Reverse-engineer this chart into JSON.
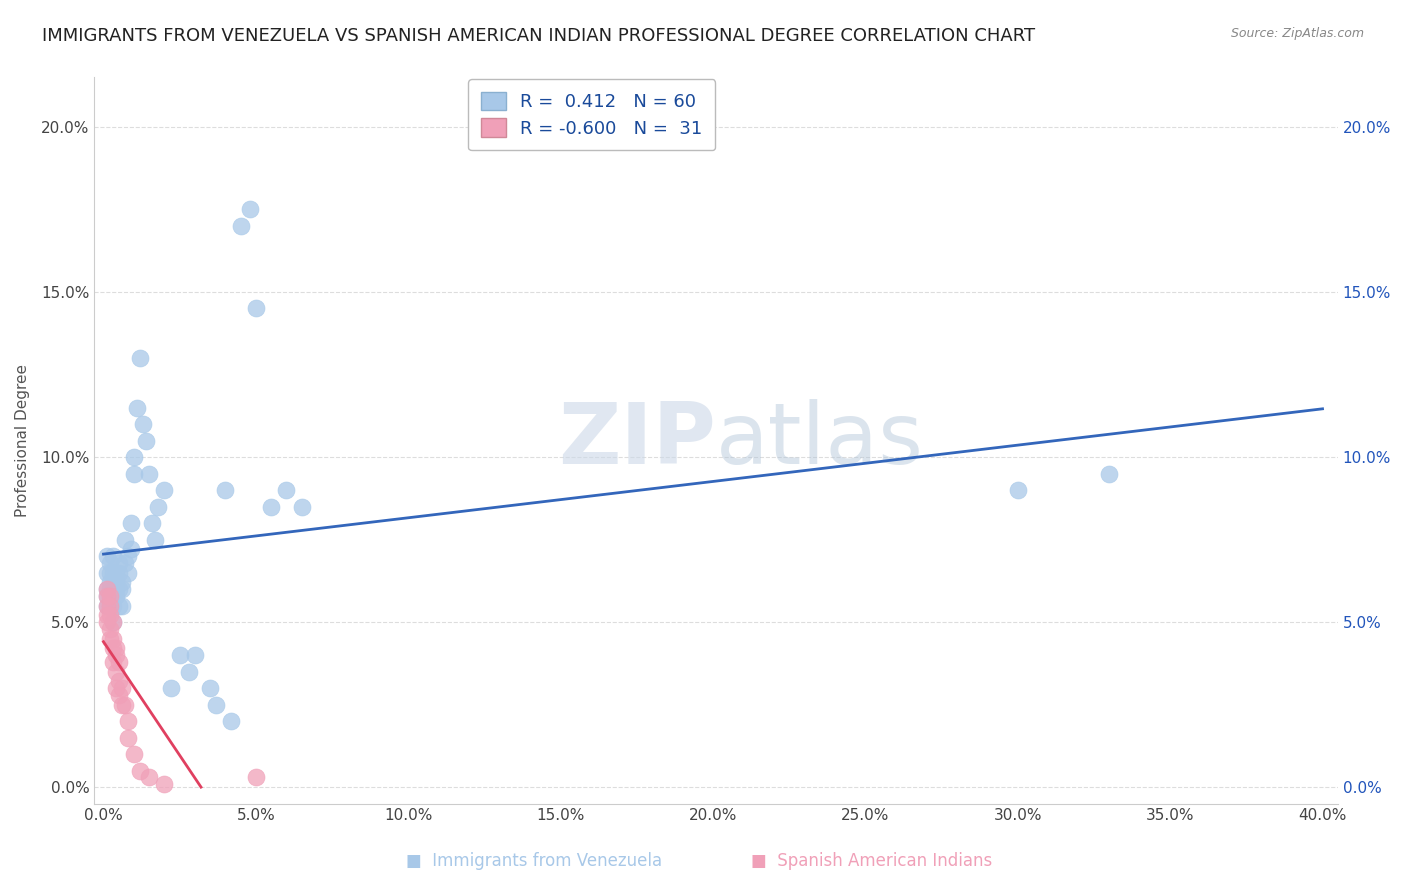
{
  "title": "IMMIGRANTS FROM VENEZUELA VS SPANISH AMERICAN INDIAN PROFESSIONAL DEGREE CORRELATION CHART",
  "source": "Source: ZipAtlas.com",
  "ylabel": "Professional Degree",
  "xlabel": "",
  "watermark": "ZIPatlas",
  "series": [
    {
      "name": "Immigrants from Venezuela",
      "R": 0.412,
      "N": 60,
      "color": "#a8c8e8",
      "line_color": "#3366bb",
      "x": [
        0.001,
        0.001,
        0.001,
        0.001,
        0.001,
        0.002,
        0.002,
        0.002,
        0.002,
        0.002,
        0.002,
        0.003,
        0.003,
        0.003,
        0.003,
        0.003,
        0.004,
        0.004,
        0.004,
        0.004,
        0.005,
        0.005,
        0.005,
        0.005,
        0.006,
        0.006,
        0.006,
        0.007,
        0.007,
        0.008,
        0.008,
        0.009,
        0.009,
        0.01,
        0.01,
        0.011,
        0.012,
        0.013,
        0.014,
        0.015,
        0.016,
        0.017,
        0.018,
        0.02,
        0.022,
        0.025,
        0.028,
        0.03,
        0.035,
        0.037,
        0.04,
        0.042,
        0.045,
        0.048,
        0.05,
        0.055,
        0.06,
        0.065,
        0.3,
        0.33
      ],
      "y": [
        0.06,
        0.065,
        0.058,
        0.07,
        0.055,
        0.06,
        0.065,
        0.058,
        0.068,
        0.055,
        0.062,
        0.06,
        0.065,
        0.055,
        0.05,
        0.07,
        0.058,
        0.065,
        0.06,
        0.062,
        0.06,
        0.065,
        0.055,
        0.068,
        0.055,
        0.062,
        0.06,
        0.075,
        0.068,
        0.07,
        0.065,
        0.08,
        0.072,
        0.1,
        0.095,
        0.115,
        0.13,
        0.11,
        0.105,
        0.095,
        0.08,
        0.075,
        0.085,
        0.09,
        0.03,
        0.04,
        0.035,
        0.04,
        0.03,
        0.025,
        0.09,
        0.02,
        0.17,
        0.175,
        0.145,
        0.085,
        0.09,
        0.085,
        0.09,
        0.095
      ]
    },
    {
      "name": "Spanish American Indians",
      "R": -0.6,
      "N": 31,
      "color": "#f0a0b8",
      "line_color": "#e04060",
      "x": [
        0.001,
        0.001,
        0.001,
        0.001,
        0.001,
        0.002,
        0.002,
        0.002,
        0.002,
        0.002,
        0.003,
        0.003,
        0.003,
        0.003,
        0.004,
        0.004,
        0.004,
        0.004,
        0.005,
        0.005,
        0.005,
        0.006,
        0.006,
        0.007,
        0.008,
        0.008,
        0.01,
        0.012,
        0.015,
        0.02,
        0.05
      ],
      "y": [
        0.06,
        0.058,
        0.055,
        0.052,
        0.05,
        0.058,
        0.055,
        0.052,
        0.048,
        0.045,
        0.05,
        0.045,
        0.042,
        0.038,
        0.042,
        0.04,
        0.035,
        0.03,
        0.038,
        0.032,
        0.028,
        0.03,
        0.025,
        0.025,
        0.02,
        0.015,
        0.01,
        0.005,
        0.003,
        0.001,
        0.003
      ]
    }
  ],
  "xlim": [
    -0.003,
    0.405
  ],
  "ylim": [
    -0.005,
    0.215
  ],
  "xticks": [
    0.0,
    0.05,
    0.1,
    0.15,
    0.2,
    0.25,
    0.3,
    0.35,
    0.4
  ],
  "xtick_labels": [
    "0.0%",
    "5.0%",
    "10.0%",
    "15.0%",
    "20.0%",
    "25.0%",
    "30.0%",
    "35.0%",
    "40.0%"
  ],
  "yticks": [
    0.0,
    0.05,
    0.1,
    0.15,
    0.2
  ],
  "ytick_labels": [
    "0.0%",
    "5.0%",
    "10.0%",
    "15.0%",
    "20.0%"
  ],
  "grid_color": "#dddddd",
  "background_color": "#ffffff",
  "title_fontsize": 13,
  "axis_label_fontsize": 11,
  "tick_fontsize": 11,
  "legend_text_color": "#1a4a9a",
  "right_tick_color": "#2255bb"
}
